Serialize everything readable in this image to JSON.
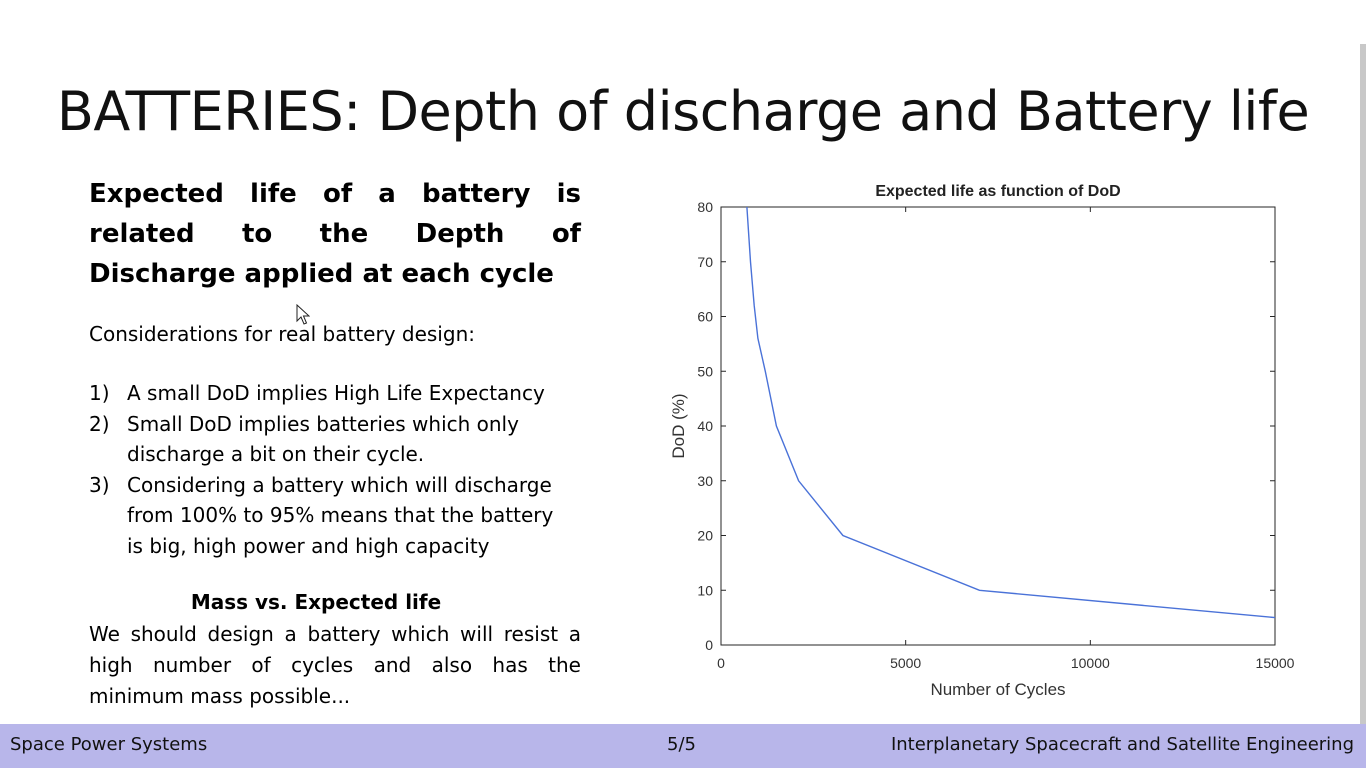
{
  "slide": {
    "title": "BATTERIES: Depth of discharge and Battery life",
    "heading": "Expected life of a battery is related to the Depth of Discharge applied at each cycle",
    "intro": "Considerations for real battery design:",
    "points": [
      {
        "num": "1)",
        "text": "A small DoD implies High Life Expectancy"
      },
      {
        "num": "2)",
        "text": "Small DoD implies batteries which only discharge a bit on their cycle."
      },
      {
        "num": "3)",
        "text": "Considering a battery which will discharge from 100% to 95% means that the battery is big, high power and high capacity"
      }
    ],
    "subheading": "Mass vs. Expected life",
    "conclusion": "We should design a battery which will resist a high number of cycles and also has the minimum mass possible..."
  },
  "footer": {
    "left": "Space Power Systems",
    "center": "5/5",
    "right": "Interplanetary Spacecraft and Satellite Engineering"
  },
  "chart_data": {
    "type": "line",
    "title": "Expected life as function of DoD",
    "xlabel": "Number of Cycles",
    "ylabel": "DoD (%)",
    "xlim": [
      0,
      15000
    ],
    "ylim": [
      0,
      80
    ],
    "xticks": [
      0,
      5000,
      10000,
      15000
    ],
    "yticks": [
      0,
      10,
      20,
      30,
      40,
      50,
      60,
      70,
      80
    ],
    "grid": false,
    "line_color": "#4a72d8",
    "series": [
      {
        "x": [
          700,
          750,
          800,
          900,
          1000,
          1200,
          1500,
          2100,
          3300,
          7000,
          15000
        ],
        "y": [
          80,
          75,
          70,
          62,
          56,
          50,
          40,
          30,
          20,
          10,
          5
        ]
      }
    ]
  }
}
